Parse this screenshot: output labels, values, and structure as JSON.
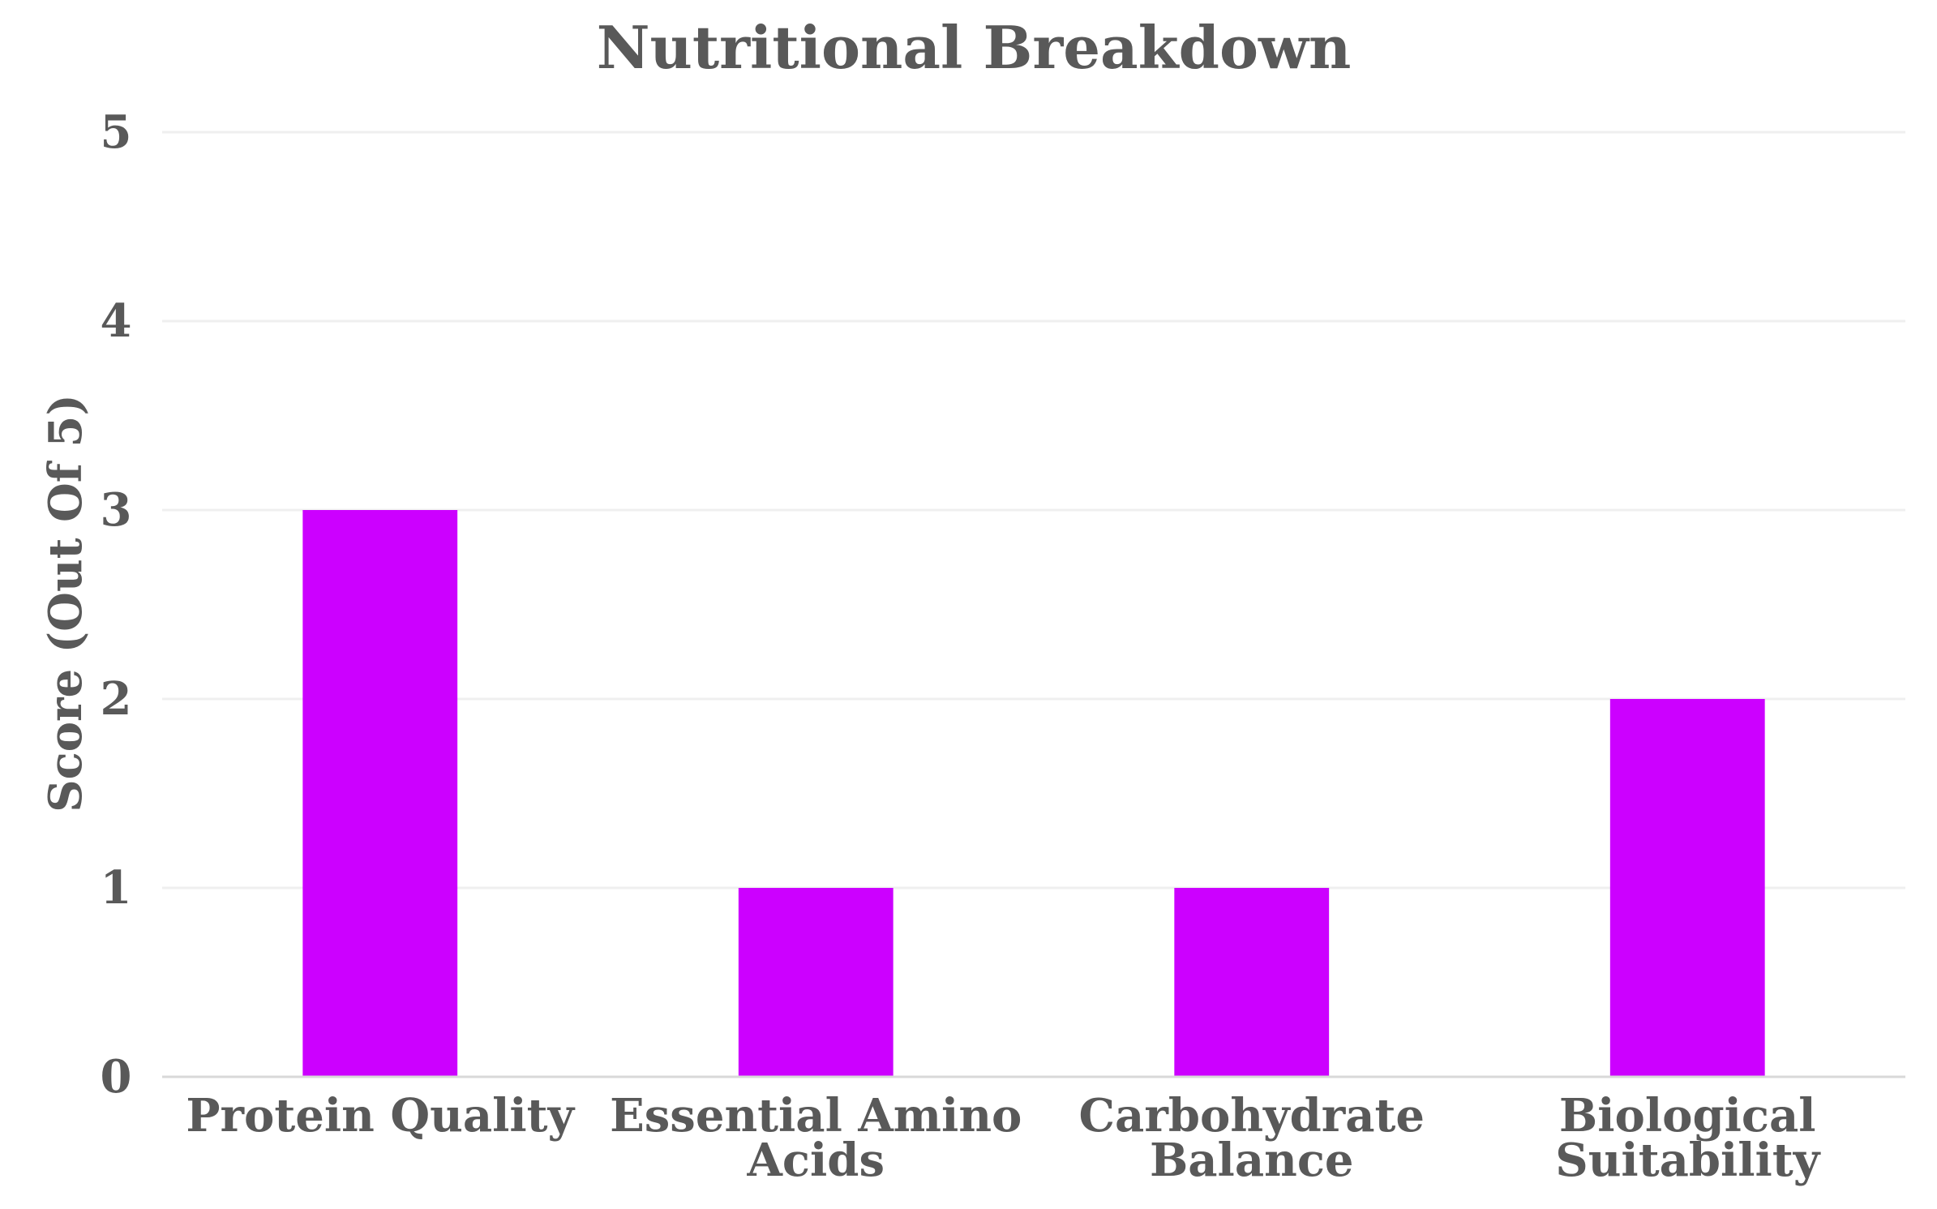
{
  "chart_data": {
    "type": "bar",
    "title": "Nutritional Breakdown",
    "xlabel": "",
    "ylabel": "Score (Out Of 5)",
    "categories": [
      [
        "Protein Quality"
      ],
      [
        "Essential Amino",
        "Acids"
      ],
      [
        "Carbohydrate",
        "Balance"
      ],
      [
        "Biological",
        "Suitability"
      ]
    ],
    "values": [
      3,
      1,
      1,
      2
    ],
    "ylim": [
      0,
      5
    ],
    "yticks": [
      0,
      1,
      2,
      3,
      4,
      5
    ],
    "grid": true,
    "legend": "none",
    "colors": {
      "bar": "#cc00ff",
      "text": "#595959",
      "grid": "#efefef",
      "axis": "#d9d9d9"
    }
  }
}
